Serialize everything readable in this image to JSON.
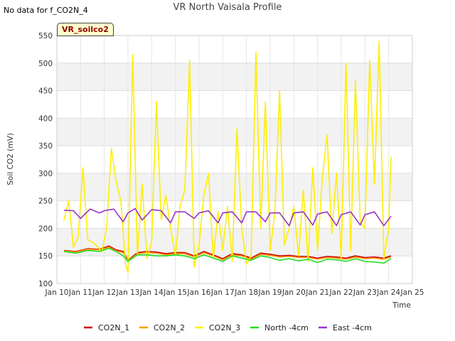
{
  "note": "No data for f_CO2N_4",
  "badge": "VR_soilco2",
  "chart_data": {
    "type": "line",
    "title": "VR North Vaisala Profile",
    "xlabel": "Time",
    "ylabel": "Soil CO2 (mV)",
    "ylim": [
      100,
      550
    ],
    "yticks": [
      100,
      150,
      200,
      250,
      300,
      350,
      400,
      450,
      500,
      550
    ],
    "xlim": [
      10,
      25
    ],
    "xticks": [
      {
        "value": 10,
        "label": "Jan 10"
      },
      {
        "value": 11,
        "label": "Jan 11"
      },
      {
        "value": 12,
        "label": "Jan 12"
      },
      {
        "value": 13,
        "label": "Jan 13"
      },
      {
        "value": 14,
        "label": "Jan 14"
      },
      {
        "value": 15,
        "label": "Jan 15"
      },
      {
        "value": 16,
        "label": "Jan 16"
      },
      {
        "value": 17,
        "label": "Jan 17"
      },
      {
        "value": 18,
        "label": "Jan 18"
      },
      {
        "value": 19,
        "label": "Jan 19"
      },
      {
        "value": 20,
        "label": "Jan 20"
      },
      {
        "value": 21,
        "label": "Jan 21"
      },
      {
        "value": 22,
        "label": "Jan 22"
      },
      {
        "value": 23,
        "label": "Jan 23"
      },
      {
        "value": 24,
        "label": "Jan 24"
      },
      {
        "value": 25,
        "label": "Jan 25"
      }
    ],
    "grid": true,
    "legend_position": "bottom",
    "series": [
      {
        "name": "CO2N_1",
        "color": "#cc0000",
        "x": [
          10.3,
          10.8,
          11.3,
          11.8,
          12.2,
          12.5,
          12.8,
          13.0,
          13.4,
          13.8,
          14.2,
          14.6,
          15.0,
          15.4,
          15.8,
          16.2,
          16.6,
          17.0,
          17.4,
          17.8,
          18.2,
          18.6,
          19.0,
          19.4,
          19.8,
          20.2,
          20.6,
          21.0,
          21.4,
          21.8,
          22.2,
          22.6,
          23.0,
          23.4,
          23.8,
          24.1
        ],
        "y": [
          160,
          158,
          163,
          162,
          168,
          161,
          158,
          142,
          156,
          158,
          157,
          154,
          156,
          156,
          150,
          158,
          152,
          145,
          154,
          152,
          146,
          155,
          153,
          150,
          151,
          149,
          149,
          146,
          149,
          148,
          146,
          150,
          147,
          148,
          146,
          150
        ]
      },
      {
        "name": "CO2N_2",
        "color": "#ff9900",
        "x": [
          10.3,
          10.8,
          11.3,
          11.8,
          12.2,
          12.5,
          12.8,
          13.0,
          13.4,
          13.8,
          14.2,
          14.6,
          15.0,
          15.4,
          15.8,
          16.2,
          16.6,
          17.0,
          17.4,
          17.8,
          18.2,
          18.6,
          19.0,
          19.4,
          19.8,
          20.2,
          20.6,
          21.0,
          21.4,
          21.8,
          22.2,
          22.6,
          23.0,
          23.4,
          23.8,
          24.1
        ],
        "y": [
          159,
          157,
          162,
          161,
          166,
          159,
          156,
          141,
          154,
          156,
          155,
          152,
          154,
          154,
          148,
          156,
          150,
          143,
          152,
          150,
          144,
          153,
          151,
          148,
          149,
          147,
          147,
          144,
          147,
          146,
          144,
          148,
          145,
          146,
          144,
          148
        ]
      },
      {
        "name": "CO2N_3",
        "color": "#ffee00",
        "x": [
          10.3,
          10.5,
          10.7,
          10.9,
          11.1,
          11.3,
          11.6,
          11.9,
          12.1,
          12.3,
          12.5,
          12.7,
          12.9,
          13.0,
          13.2,
          13.4,
          13.6,
          13.8,
          14.0,
          14.2,
          14.4,
          14.6,
          14.8,
          15.0,
          15.2,
          15.4,
          15.6,
          15.8,
          16.0,
          16.2,
          16.4,
          16.6,
          16.8,
          17.0,
          17.2,
          17.4,
          17.6,
          17.8,
          18.0,
          18.2,
          18.4,
          18.6,
          18.8,
          19.0,
          19.2,
          19.4,
          19.6,
          19.8,
          20.0,
          20.2,
          20.4,
          20.6,
          20.8,
          21.0,
          21.2,
          21.4,
          21.6,
          21.8,
          22.0,
          22.2,
          22.4,
          22.6,
          22.8,
          23.0,
          23.2,
          23.4,
          23.6,
          23.8,
          24.0,
          24.1
        ],
        "y": [
          215,
          250,
          165,
          185,
          310,
          180,
          172,
          158,
          200,
          345,
          285,
          250,
          135,
          120,
          515,
          150,
          280,
          145,
          175,
          430,
          215,
          260,
          200,
          150,
          240,
          270,
          505,
          130,
          170,
          260,
          300,
          145,
          230,
          160,
          240,
          140,
          380,
          200,
          135,
          150,
          520,
          200,
          430,
          160,
          230,
          450,
          170,
          200,
          240,
          150,
          270,
          140,
          310,
          160,
          290,
          370,
          190,
          300,
          145,
          500,
          160,
          470,
          210,
          200,
          505,
          280,
          540,
          145,
          200,
          330
        ]
      },
      {
        "name": "North -4cm",
        "color": "#22dd22",
        "x": [
          10.3,
          10.8,
          11.3,
          11.8,
          12.2,
          12.5,
          12.8,
          13.0,
          13.4,
          13.8,
          14.2,
          14.6,
          15.0,
          15.4,
          15.8,
          16.2,
          16.6,
          17.0,
          17.4,
          17.8,
          18.2,
          18.6,
          19.0,
          19.4,
          19.8,
          20.2,
          20.6,
          21.0,
          21.4,
          21.8,
          22.2,
          22.6,
          23.0,
          23.4,
          23.8,
          24.1
        ],
        "y": [
          158,
          155,
          160,
          158,
          164,
          158,
          150,
          140,
          152,
          152,
          150,
          150,
          152,
          150,
          145,
          152,
          146,
          140,
          150,
          146,
          142,
          150,
          147,
          142,
          145,
          141,
          144,
          138,
          144,
          143,
          140,
          145,
          140,
          139,
          137,
          145
        ]
      },
      {
        "name": "East -4cm",
        "color": "#9933cc",
        "x": [
          10.3,
          10.7,
          11.0,
          11.4,
          11.8,
          12.0,
          12.4,
          12.8,
          13.0,
          13.3,
          13.6,
          14.0,
          14.4,
          14.8,
          15.0,
          15.4,
          15.8,
          16.0,
          16.4,
          16.8,
          17.0,
          17.4,
          17.8,
          18.0,
          18.4,
          18.8,
          19.0,
          19.4,
          19.8,
          20.0,
          20.4,
          20.8,
          21.0,
          21.4,
          21.8,
          22.0,
          22.4,
          22.8,
          23.0,
          23.4,
          23.8,
          24.1
        ],
        "y": [
          233,
          232,
          218,
          235,
          228,
          232,
          235,
          212,
          228,
          236,
          215,
          234,
          232,
          210,
          230,
          230,
          218,
          228,
          232,
          210,
          228,
          230,
          210,
          230,
          230,
          212,
          228,
          228,
          205,
          228,
          230,
          206,
          226,
          230,
          205,
          225,
          230,
          206,
          225,
          230,
          205,
          222
        ]
      }
    ]
  }
}
